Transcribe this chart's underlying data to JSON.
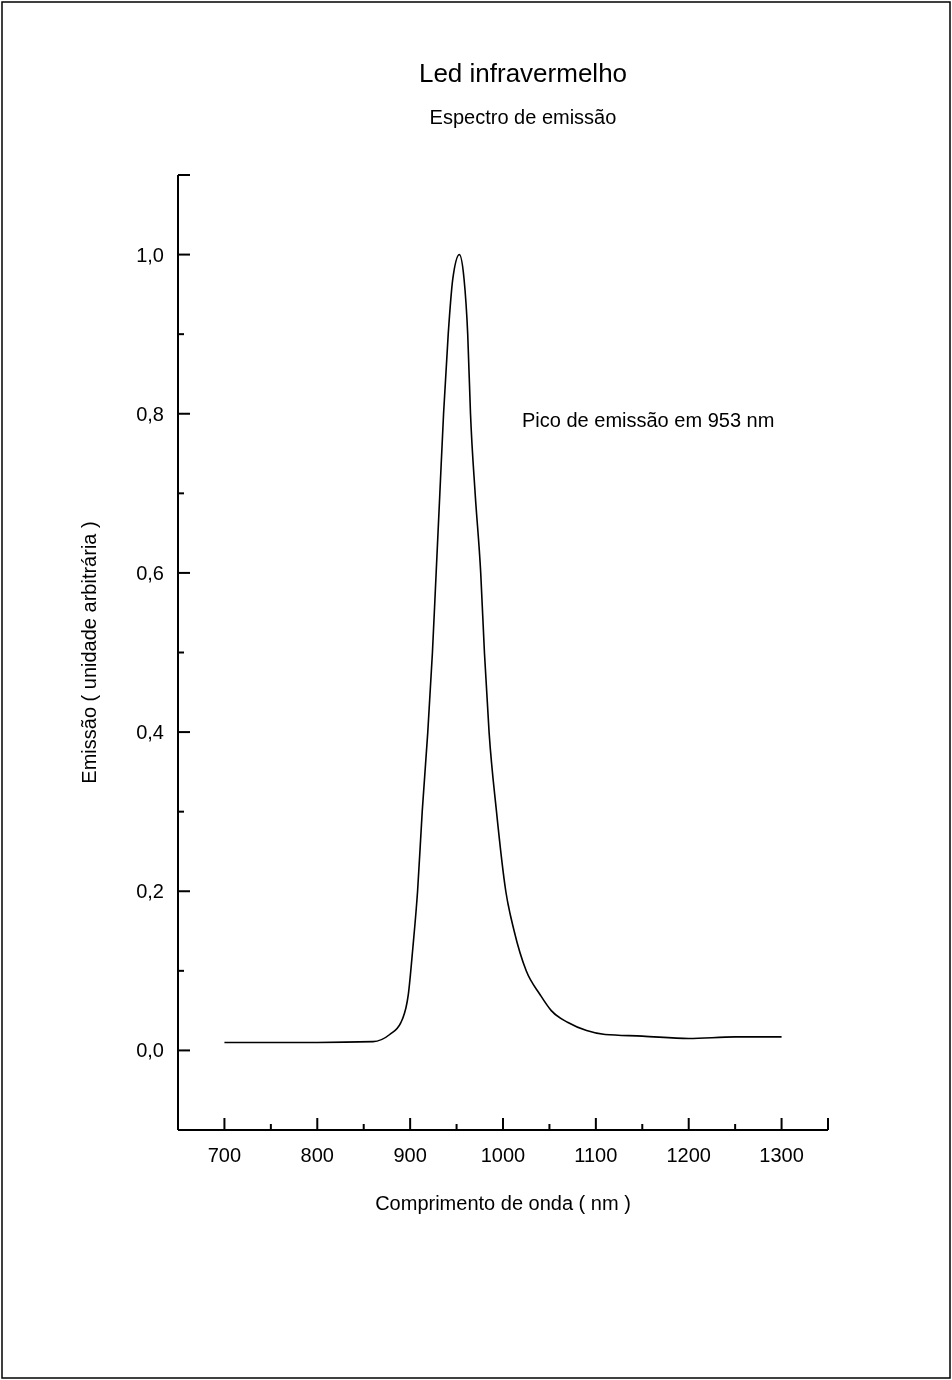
{
  "chart_data": {
    "type": "line",
    "title": "Led infravermelho",
    "subtitle": "Espectro de emissão",
    "xlabel": "Comprimento de onda ( nm )",
    "ylabel": "Emissão ( unidade arbitrária )",
    "annotations": [
      "Pico de emissão em 953 nm"
    ],
    "xlim": [
      650,
      1350
    ],
    "ylim": [
      -0.1,
      1.1
    ],
    "xticks": [
      {
        "value": 650,
        "label": null
      },
      700,
      {
        "value": 750,
        "label": null
      },
      800,
      {
        "value": 850,
        "label": null
      },
      900,
      {
        "value": 950,
        "label": null
      },
      1000,
      {
        "value": 1050,
        "label": null
      },
      1100,
      {
        "value": 1150,
        "label": null
      },
      1200,
      {
        "value": 1250,
        "label": null
      },
      1300,
      {
        "value": 1350,
        "label": null
      }
    ],
    "yticks": [
      {
        "value": 0,
        "label": "0,0"
      },
      {
        "value": 0.1,
        "label": null
      },
      {
        "value": 0.2,
        "label": "0,2"
      },
      {
        "value": 0.3,
        "label": null
      },
      {
        "value": 0.4,
        "label": "0,4"
      },
      {
        "value": 0.5,
        "label": null
      },
      {
        "value": 0.6,
        "label": "0,6"
      },
      {
        "value": 0.7,
        "label": null
      },
      {
        "value": 0.8,
        "label": "0,8"
      },
      {
        "value": 0.9,
        "label": null
      },
      {
        "value": 1,
        "label": "1,0"
      },
      {
        "value": 1.1,
        "label": null
      }
    ],
    "marker": "none",
    "line_style": "solid",
    "series": [
      {
        "color": "#000000",
        "x": [
          700,
          800,
          860,
          878,
          890,
          898,
          903,
          908,
          913,
          919,
          924,
          928,
          932,
          936,
          941,
          946,
          953,
          958,
          962,
          965,
          970,
          976,
          980,
          985,
          993,
          1003,
          1012,
          1025,
          1040,
          1052,
          1070,
          1090,
          1110,
          1150,
          1200,
          1250,
          1300
        ],
        "values": [
          0.01,
          0.01,
          0.011,
          0.02,
          0.035,
          0.07,
          0.13,
          0.2,
          0.3,
          0.4,
          0.5,
          0.6,
          0.7,
          0.8,
          0.9,
          0.97,
          1.0,
          0.97,
          0.9,
          0.8,
          0.7,
          0.6,
          0.5,
          0.4,
          0.3,
          0.2,
          0.15,
          0.1,
          0.07,
          0.05,
          0.035,
          0.025,
          0.02,
          0.018,
          0.015,
          0.017,
          0.017
        ]
      }
    ]
  }
}
